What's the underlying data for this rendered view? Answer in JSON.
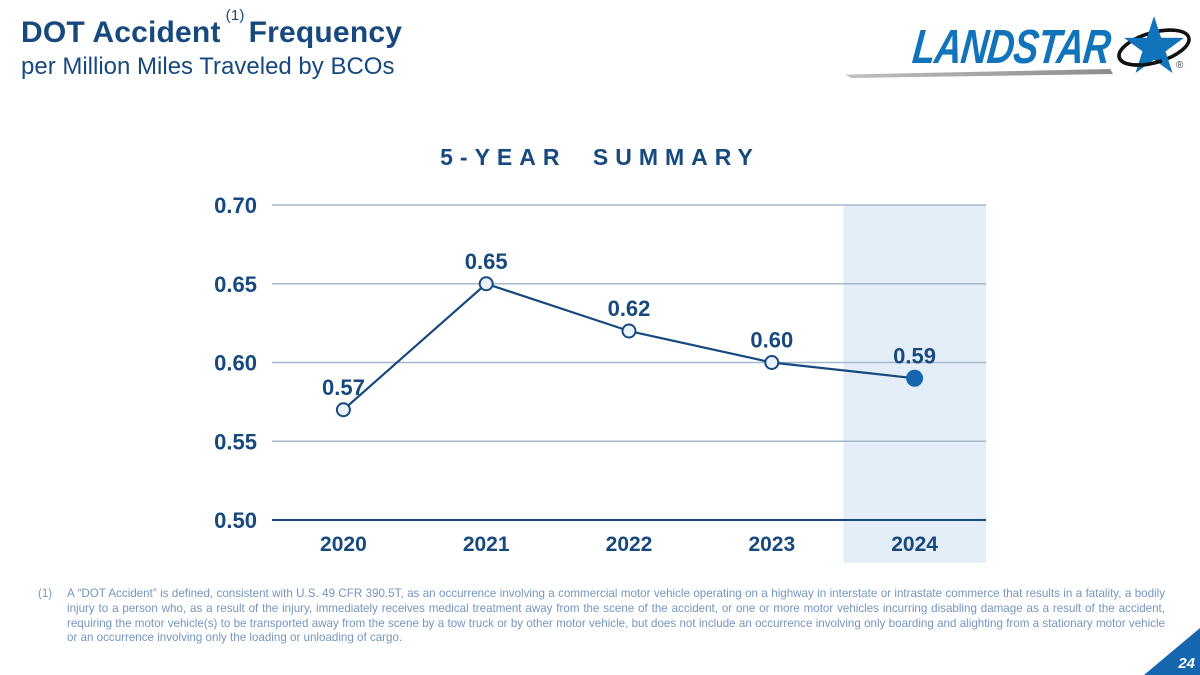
{
  "header": {
    "title_main": "DOT Accident",
    "title_superscript": "(1)",
    "title_suffix": "Frequency",
    "subtitle": "per Million Miles Traveled by BCOs"
  },
  "logo": {
    "brand": "LANDSTAR",
    "registered_mark": "®",
    "brand_color": "#1173B9",
    "star_icon": "landstar-star-icon"
  },
  "chart_data": {
    "type": "line",
    "title": "5-YEAR SUMMARY",
    "categories": [
      "2020",
      "2021",
      "2022",
      "2023",
      "2024"
    ],
    "series": [
      {
        "name": "DOT accident frequency per million miles traveled by BCOs",
        "values": [
          0.57,
          0.65,
          0.62,
          0.6,
          0.59
        ]
      }
    ],
    "data_labels": [
      "0.57",
      "0.65",
      "0.62",
      "0.60",
      "0.59"
    ],
    "ylim": [
      0.5,
      0.7
    ],
    "yticks": [
      0.5,
      0.55,
      0.6,
      0.65,
      0.7
    ],
    "ytick_labels": [
      "0.50",
      "0.55",
      "0.60",
      "0.65",
      "0.70"
    ],
    "grid": "horizontal gridlines at each y tick",
    "legend": "none",
    "highlight_category": "2024",
    "colors": {
      "line": "#17497E",
      "label": "#17497E",
      "gridline": "#A6B7C8",
      "baseline": "#17497E",
      "marker_open_fill": "#EBF3FA",
      "marker_filled_fill": "#1566AF",
      "highlight_band": "#E4EEF8"
    }
  },
  "footnote": {
    "number": "(1)",
    "text": "A “DOT Accident” is defined, consistent with U.S. 49 CFR 390.5T, as an occurrence involving a commercial motor vehicle operating on a highway in interstate or intrastate commerce that results in a fatality, a bodily injury to a person who, as a result of the injury, immediately receives medical treatment away from the scene of the accident, or one or more motor vehicles incurring disabling damage as a result of the accident, requiring the motor vehicle(s) to be transported away from the scene by a tow truck or by other motor vehicle, but does not include an occurrence involving only boarding and alighting from a stationary motor vehicle or an occurrence involving only the loading or unloading of cargo."
  },
  "page_number": "24"
}
